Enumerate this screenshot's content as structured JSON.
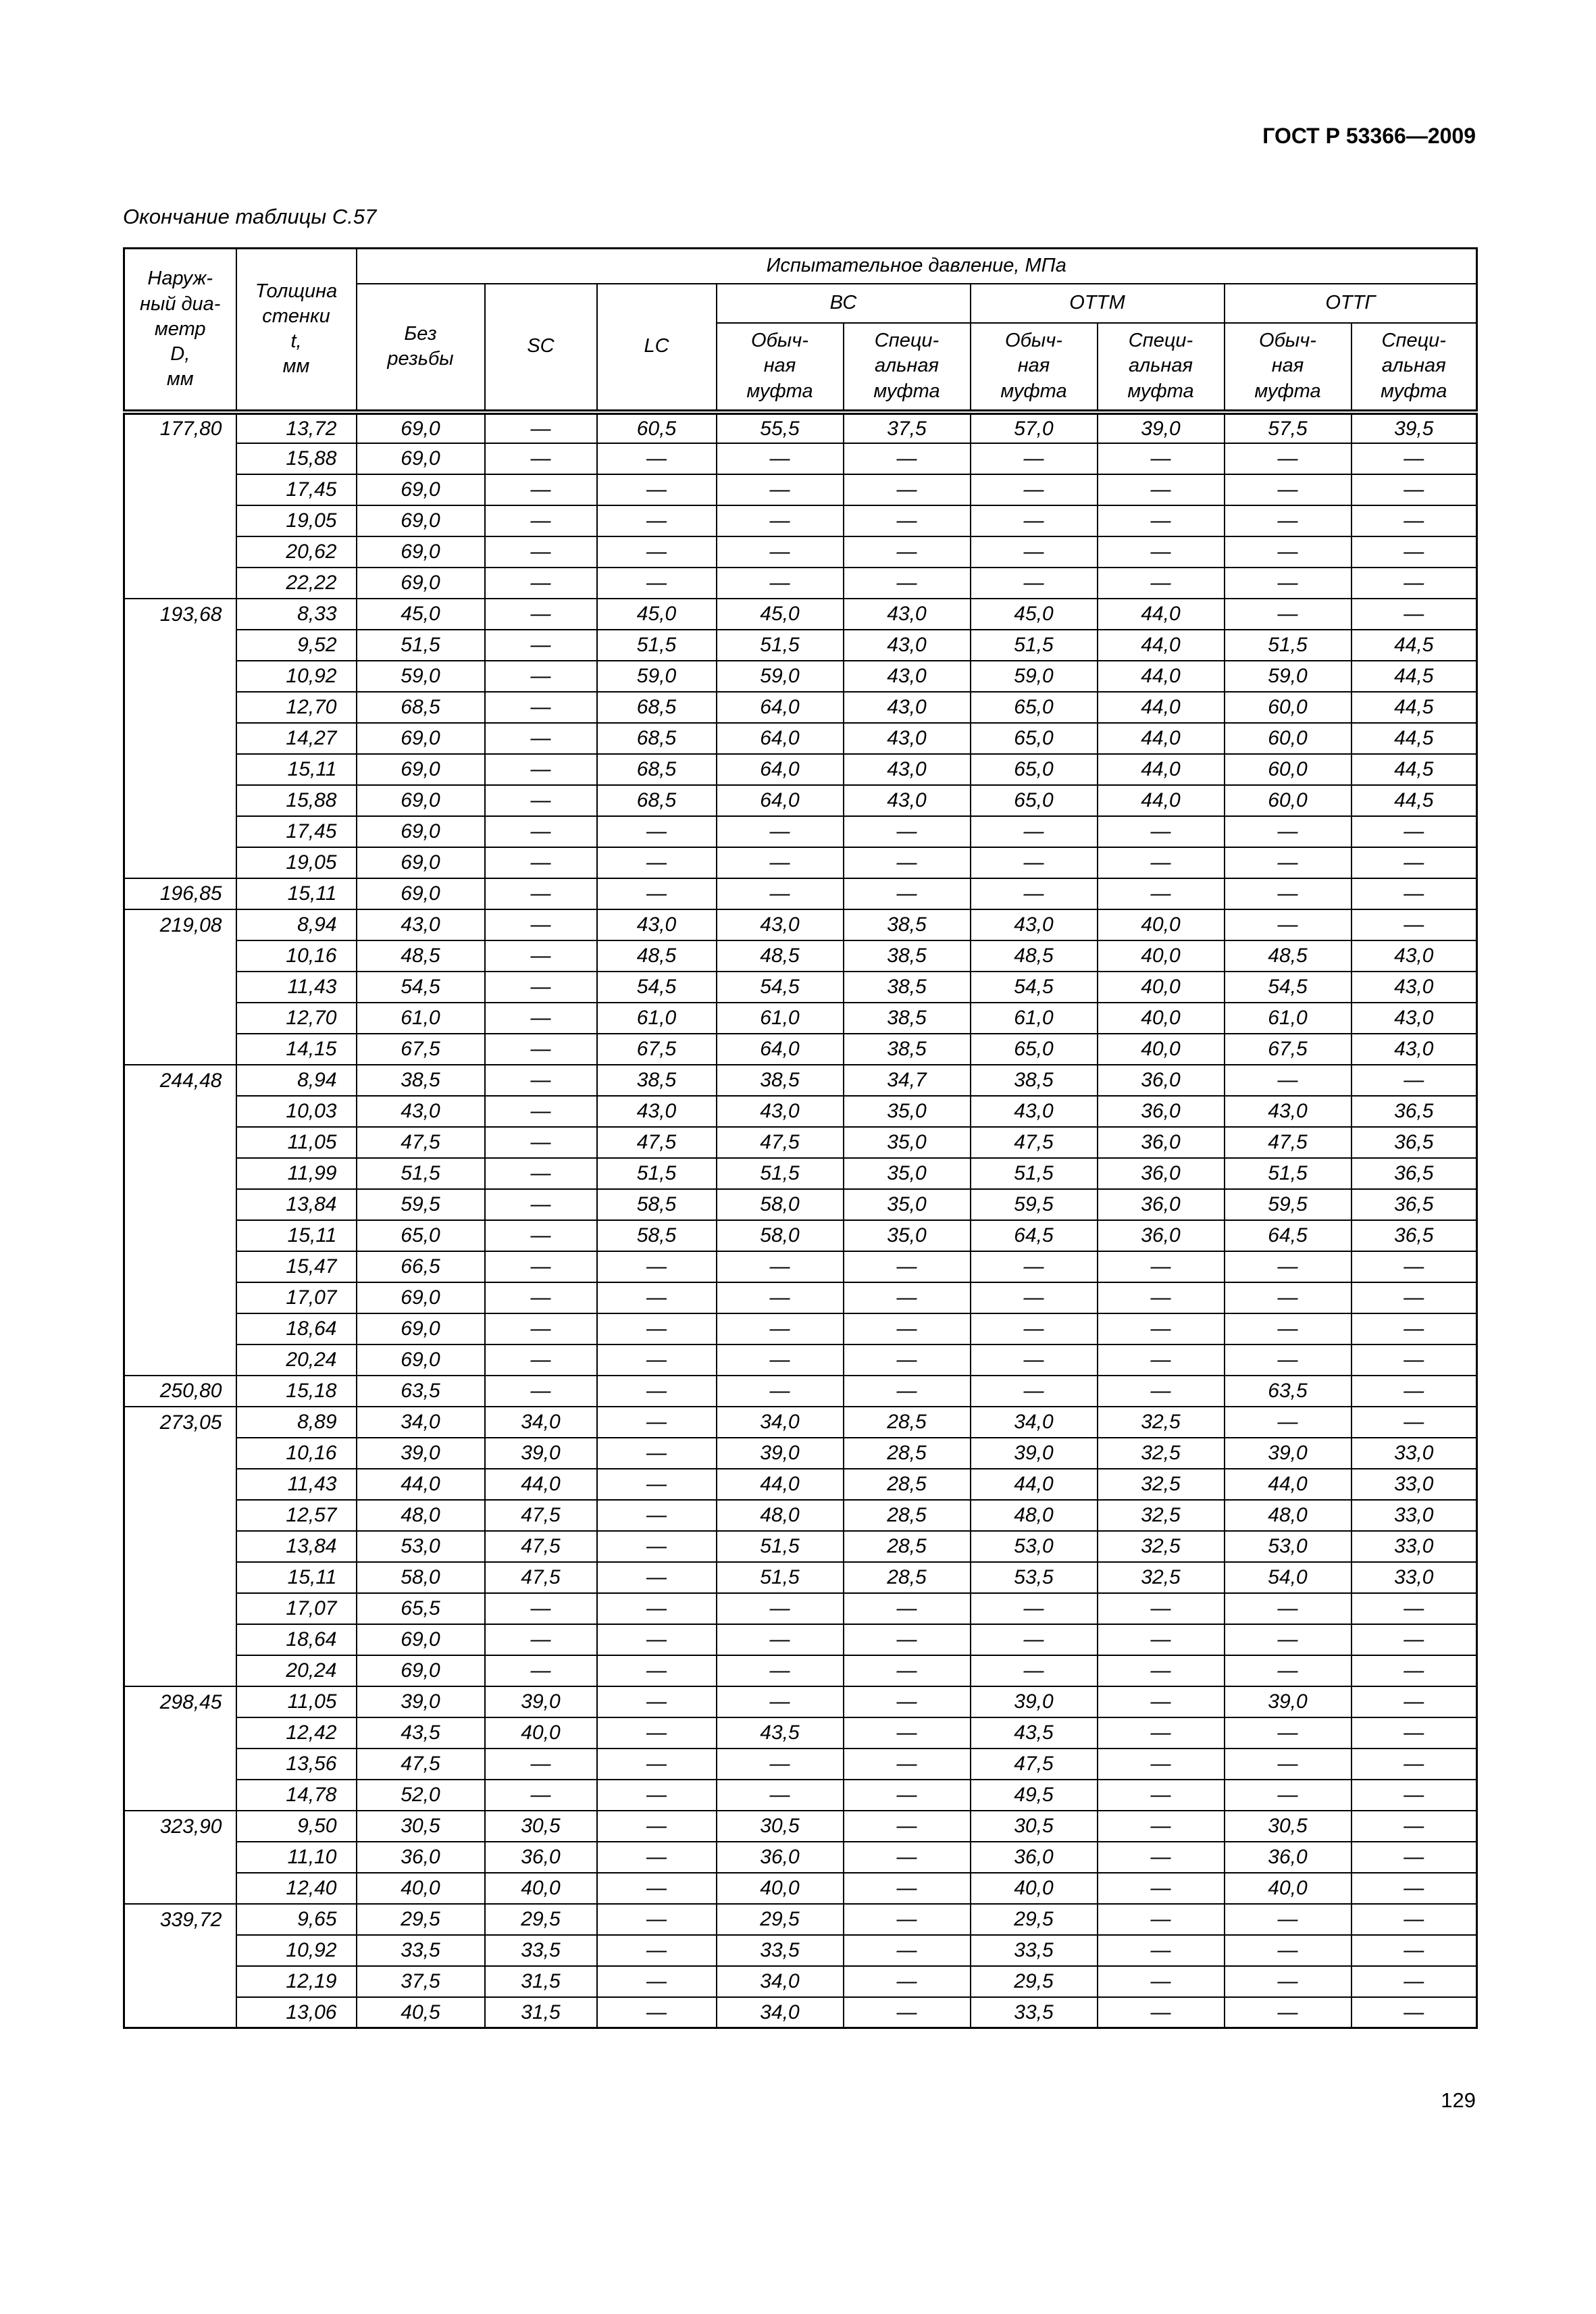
{
  "doc": {
    "header": "ГОСТ Р 53366—2009",
    "caption": "Окончание таблицы С.57",
    "page_number": "129"
  },
  "table": {
    "headers": {
      "diameter": "Наруж-\nный диа-\nметр\nD,\nмм",
      "thickness": "Толщина\nстенки\nt,\nмм",
      "pressure_title": "Испытательное давление, МПа",
      "no_thread": "Без\nрезьбы",
      "sc": "SC",
      "lc": "LC",
      "vs": "ВС",
      "ottm": "ОТТМ",
      "ottg": "ОТТГ",
      "coupling_regular": "Обыч-\nная\nмуфта",
      "coupling_special": "Специ-\nальная\nмуфта"
    },
    "rows": [
      [
        "177,80",
        "13,72",
        "69,0",
        "—",
        "60,5",
        "55,5",
        "37,5",
        "57,0",
        "39,0",
        "57,5",
        "39,5"
      ],
      [
        "",
        "15,88",
        "69,0",
        "—",
        "—",
        "—",
        "—",
        "—",
        "—",
        "—",
        "—"
      ],
      [
        "",
        "17,45",
        "69,0",
        "—",
        "—",
        "—",
        "—",
        "—",
        "—",
        "—",
        "—"
      ],
      [
        "",
        "19,05",
        "69,0",
        "—",
        "—",
        "—",
        "—",
        "—",
        "—",
        "—",
        "—"
      ],
      [
        "",
        "20,62",
        "69,0",
        "—",
        "—",
        "—",
        "—",
        "—",
        "—",
        "—",
        "—"
      ],
      [
        "",
        "22,22",
        "69,0",
        "—",
        "—",
        "—",
        "—",
        "—",
        "—",
        "—",
        "—"
      ],
      [
        "193,68",
        "8,33",
        "45,0",
        "—",
        "45,0",
        "45,0",
        "43,0",
        "45,0",
        "44,0",
        "—",
        "—"
      ],
      [
        "",
        "9,52",
        "51,5",
        "—",
        "51,5",
        "51,5",
        "43,0",
        "51,5",
        "44,0",
        "51,5",
        "44,5"
      ],
      [
        "",
        "10,92",
        "59,0",
        "—",
        "59,0",
        "59,0",
        "43,0",
        "59,0",
        "44,0",
        "59,0",
        "44,5"
      ],
      [
        "",
        "12,70",
        "68,5",
        "—",
        "68,5",
        "64,0",
        "43,0",
        "65,0",
        "44,0",
        "60,0",
        "44,5"
      ],
      [
        "",
        "14,27",
        "69,0",
        "—",
        "68,5",
        "64,0",
        "43,0",
        "65,0",
        "44,0",
        "60,0",
        "44,5"
      ],
      [
        "",
        "15,11",
        "69,0",
        "—",
        "68,5",
        "64,0",
        "43,0",
        "65,0",
        "44,0",
        "60,0",
        "44,5"
      ],
      [
        "",
        "15,88",
        "69,0",
        "—",
        "68,5",
        "64,0",
        "43,0",
        "65,0",
        "44,0",
        "60,0",
        "44,5"
      ],
      [
        "",
        "17,45",
        "69,0",
        "—",
        "—",
        "—",
        "—",
        "—",
        "—",
        "—",
        "—"
      ],
      [
        "",
        "19,05",
        "69,0",
        "—",
        "—",
        "—",
        "—",
        "—",
        "—",
        "—",
        "—"
      ],
      [
        "196,85",
        "15,11",
        "69,0",
        "—",
        "—",
        "—",
        "—",
        "—",
        "—",
        "—",
        "—"
      ],
      [
        "219,08",
        "8,94",
        "43,0",
        "—",
        "43,0",
        "43,0",
        "38,5",
        "43,0",
        "40,0",
        "—",
        "—"
      ],
      [
        "",
        "10,16",
        "48,5",
        "—",
        "48,5",
        "48,5",
        "38,5",
        "48,5",
        "40,0",
        "48,5",
        "43,0"
      ],
      [
        "",
        "11,43",
        "54,5",
        "—",
        "54,5",
        "54,5",
        "38,5",
        "54,5",
        "40,0",
        "54,5",
        "43,0"
      ],
      [
        "",
        "12,70",
        "61,0",
        "—",
        "61,0",
        "61,0",
        "38,5",
        "61,0",
        "40,0",
        "61,0",
        "43,0"
      ],
      [
        "",
        "14,15",
        "67,5",
        "—",
        "67,5",
        "64,0",
        "38,5",
        "65,0",
        "40,0",
        "67,5",
        "43,0"
      ],
      [
        "244,48",
        "8,94",
        "38,5",
        "—",
        "38,5",
        "38,5",
        "34,7",
        "38,5",
        "36,0",
        "—",
        "—"
      ],
      [
        "",
        "10,03",
        "43,0",
        "—",
        "43,0",
        "43,0",
        "35,0",
        "43,0",
        "36,0",
        "43,0",
        "36,5"
      ],
      [
        "",
        "11,05",
        "47,5",
        "—",
        "47,5",
        "47,5",
        "35,0",
        "47,5",
        "36,0",
        "47,5",
        "36,5"
      ],
      [
        "",
        "11,99",
        "51,5",
        "—",
        "51,5",
        "51,5",
        "35,0",
        "51,5",
        "36,0",
        "51,5",
        "36,5"
      ],
      [
        "",
        "13,84",
        "59,5",
        "—",
        "58,5",
        "58,0",
        "35,0",
        "59,5",
        "36,0",
        "59,5",
        "36,5"
      ],
      [
        "",
        "15,11",
        "65,0",
        "—",
        "58,5",
        "58,0",
        "35,0",
        "64,5",
        "36,0",
        "64,5",
        "36,5"
      ],
      [
        "",
        "15,47",
        "66,5",
        "—",
        "—",
        "—",
        "—",
        "—",
        "—",
        "—",
        "—"
      ],
      [
        "",
        "17,07",
        "69,0",
        "—",
        "—",
        "—",
        "—",
        "—",
        "—",
        "—",
        "—"
      ],
      [
        "",
        "18,64",
        "69,0",
        "—",
        "—",
        "—",
        "—",
        "—",
        "—",
        "—",
        "—"
      ],
      [
        "",
        "20,24",
        "69,0",
        "—",
        "—",
        "—",
        "—",
        "—",
        "—",
        "—",
        "—"
      ],
      [
        "250,80",
        "15,18",
        "63,5",
        "—",
        "—",
        "—",
        "—",
        "—",
        "—",
        "63,5",
        "—"
      ],
      [
        "273,05",
        "8,89",
        "34,0",
        "34,0",
        "—",
        "34,0",
        "28,5",
        "34,0",
        "32,5",
        "—",
        "—"
      ],
      [
        "",
        "10,16",
        "39,0",
        "39,0",
        "—",
        "39,0",
        "28,5",
        "39,0",
        "32,5",
        "39,0",
        "33,0"
      ],
      [
        "",
        "11,43",
        "44,0",
        "44,0",
        "—",
        "44,0",
        "28,5",
        "44,0",
        "32,5",
        "44,0",
        "33,0"
      ],
      [
        "",
        "12,57",
        "48,0",
        "47,5",
        "—",
        "48,0",
        "28,5",
        "48,0",
        "32,5",
        "48,0",
        "33,0"
      ],
      [
        "",
        "13,84",
        "53,0",
        "47,5",
        "—",
        "51,5",
        "28,5",
        "53,0",
        "32,5",
        "53,0",
        "33,0"
      ],
      [
        "",
        "15,11",
        "58,0",
        "47,5",
        "—",
        "51,5",
        "28,5",
        "53,5",
        "32,5",
        "54,0",
        "33,0"
      ],
      [
        "",
        "17,07",
        "65,5",
        "—",
        "—",
        "—",
        "—",
        "—",
        "—",
        "—",
        "—"
      ],
      [
        "",
        "18,64",
        "69,0",
        "—",
        "—",
        "—",
        "—",
        "—",
        "—",
        "—",
        "—"
      ],
      [
        "",
        "20,24",
        "69,0",
        "—",
        "—",
        "—",
        "—",
        "—",
        "—",
        "—",
        "—"
      ],
      [
        "298,45",
        "11,05",
        "39,0",
        "39,0",
        "—",
        "—",
        "—",
        "39,0",
        "—",
        "39,0",
        "—"
      ],
      [
        "",
        "12,42",
        "43,5",
        "40,0",
        "—",
        "43,5",
        "—",
        "43,5",
        "—",
        "—",
        "—"
      ],
      [
        "",
        "13,56",
        "47,5",
        "—",
        "—",
        "—",
        "—",
        "47,5",
        "—",
        "—",
        "—"
      ],
      [
        "",
        "14,78",
        "52,0",
        "—",
        "—",
        "—",
        "—",
        "49,5",
        "—",
        "—",
        "—"
      ],
      [
        "323,90",
        "9,50",
        "30,5",
        "30,5",
        "—",
        "30,5",
        "—",
        "30,5",
        "—",
        "30,5",
        "—"
      ],
      [
        "",
        "11,10",
        "36,0",
        "36,0",
        "—",
        "36,0",
        "—",
        "36,0",
        "—",
        "36,0",
        "—"
      ],
      [
        "",
        "12,40",
        "40,0",
        "40,0",
        "—",
        "40,0",
        "—",
        "40,0",
        "—",
        "40,0",
        "—"
      ],
      [
        "339,72",
        "9,65",
        "29,5",
        "29,5",
        "—",
        "29,5",
        "—",
        "29,5",
        "—",
        "—",
        "—"
      ],
      [
        "",
        "10,92",
        "33,5",
        "33,5",
        "—",
        "33,5",
        "—",
        "33,5",
        "—",
        "—",
        "—"
      ],
      [
        "",
        "12,19",
        "37,5",
        "31,5",
        "—",
        "34,0",
        "—",
        "29,5",
        "—",
        "—",
        "—"
      ],
      [
        "",
        "13,06",
        "40,5",
        "31,5",
        "—",
        "34,0",
        "—",
        "33,5",
        "—",
        "—",
        "—"
      ]
    ]
  }
}
